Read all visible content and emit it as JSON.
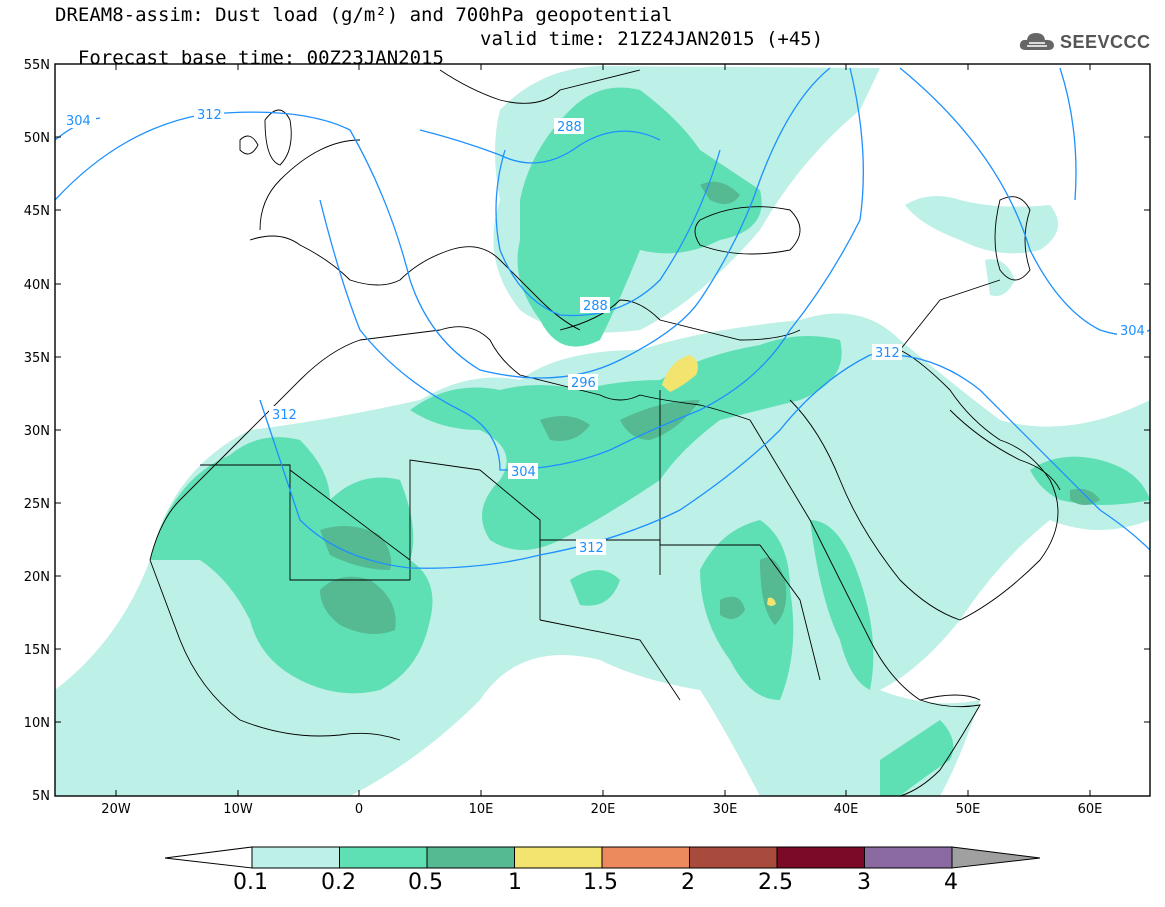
{
  "header": {
    "title_line1": "DREAM8-assim: Dust load (g/m²) and 700hPa geopotential",
    "base_time": "Forecast base time: 00Z23JAN2015",
    "valid_time": "valid time: 21Z24JAN2015 (+45)",
    "logo_text": "SEEVCCC"
  },
  "map": {
    "lat_labels": [
      "55N",
      "50N",
      "45N",
      "40N",
      "35N",
      "30N",
      "25N",
      "20N",
      "15N",
      "10N",
      "5N"
    ],
    "lon_labels": [
      "20W",
      "10W",
      "0",
      "10E",
      "20E",
      "30E",
      "40E",
      "50E",
      "60E"
    ],
    "contour_labels": [
      "304",
      "312",
      "288",
      "288",
      "296",
      "304",
      "312",
      "312",
      "312",
      "304"
    ],
    "colors": {
      "frame": "#000000",
      "coast": "#000000",
      "contour": "#1e90ff"
    }
  },
  "colorbar": {
    "bins": [
      {
        "color": "#bdf0e6"
      },
      {
        "color": "#5fe0b4"
      },
      {
        "color": "#55b992"
      },
      {
        "color": "#f2e46e"
      },
      {
        "color": "#ec8a5e"
      },
      {
        "color": "#a84b3c"
      },
      {
        "color": "#7a0a26"
      },
      {
        "color": "#8a6aa0"
      }
    ],
    "over_color": "#a0a0a0",
    "under_color": "#ffffff",
    "tick_labels": [
      "0.1",
      "0.2",
      "0.5",
      "1",
      "1.5",
      "2",
      "2.5",
      "3",
      "4"
    ]
  }
}
